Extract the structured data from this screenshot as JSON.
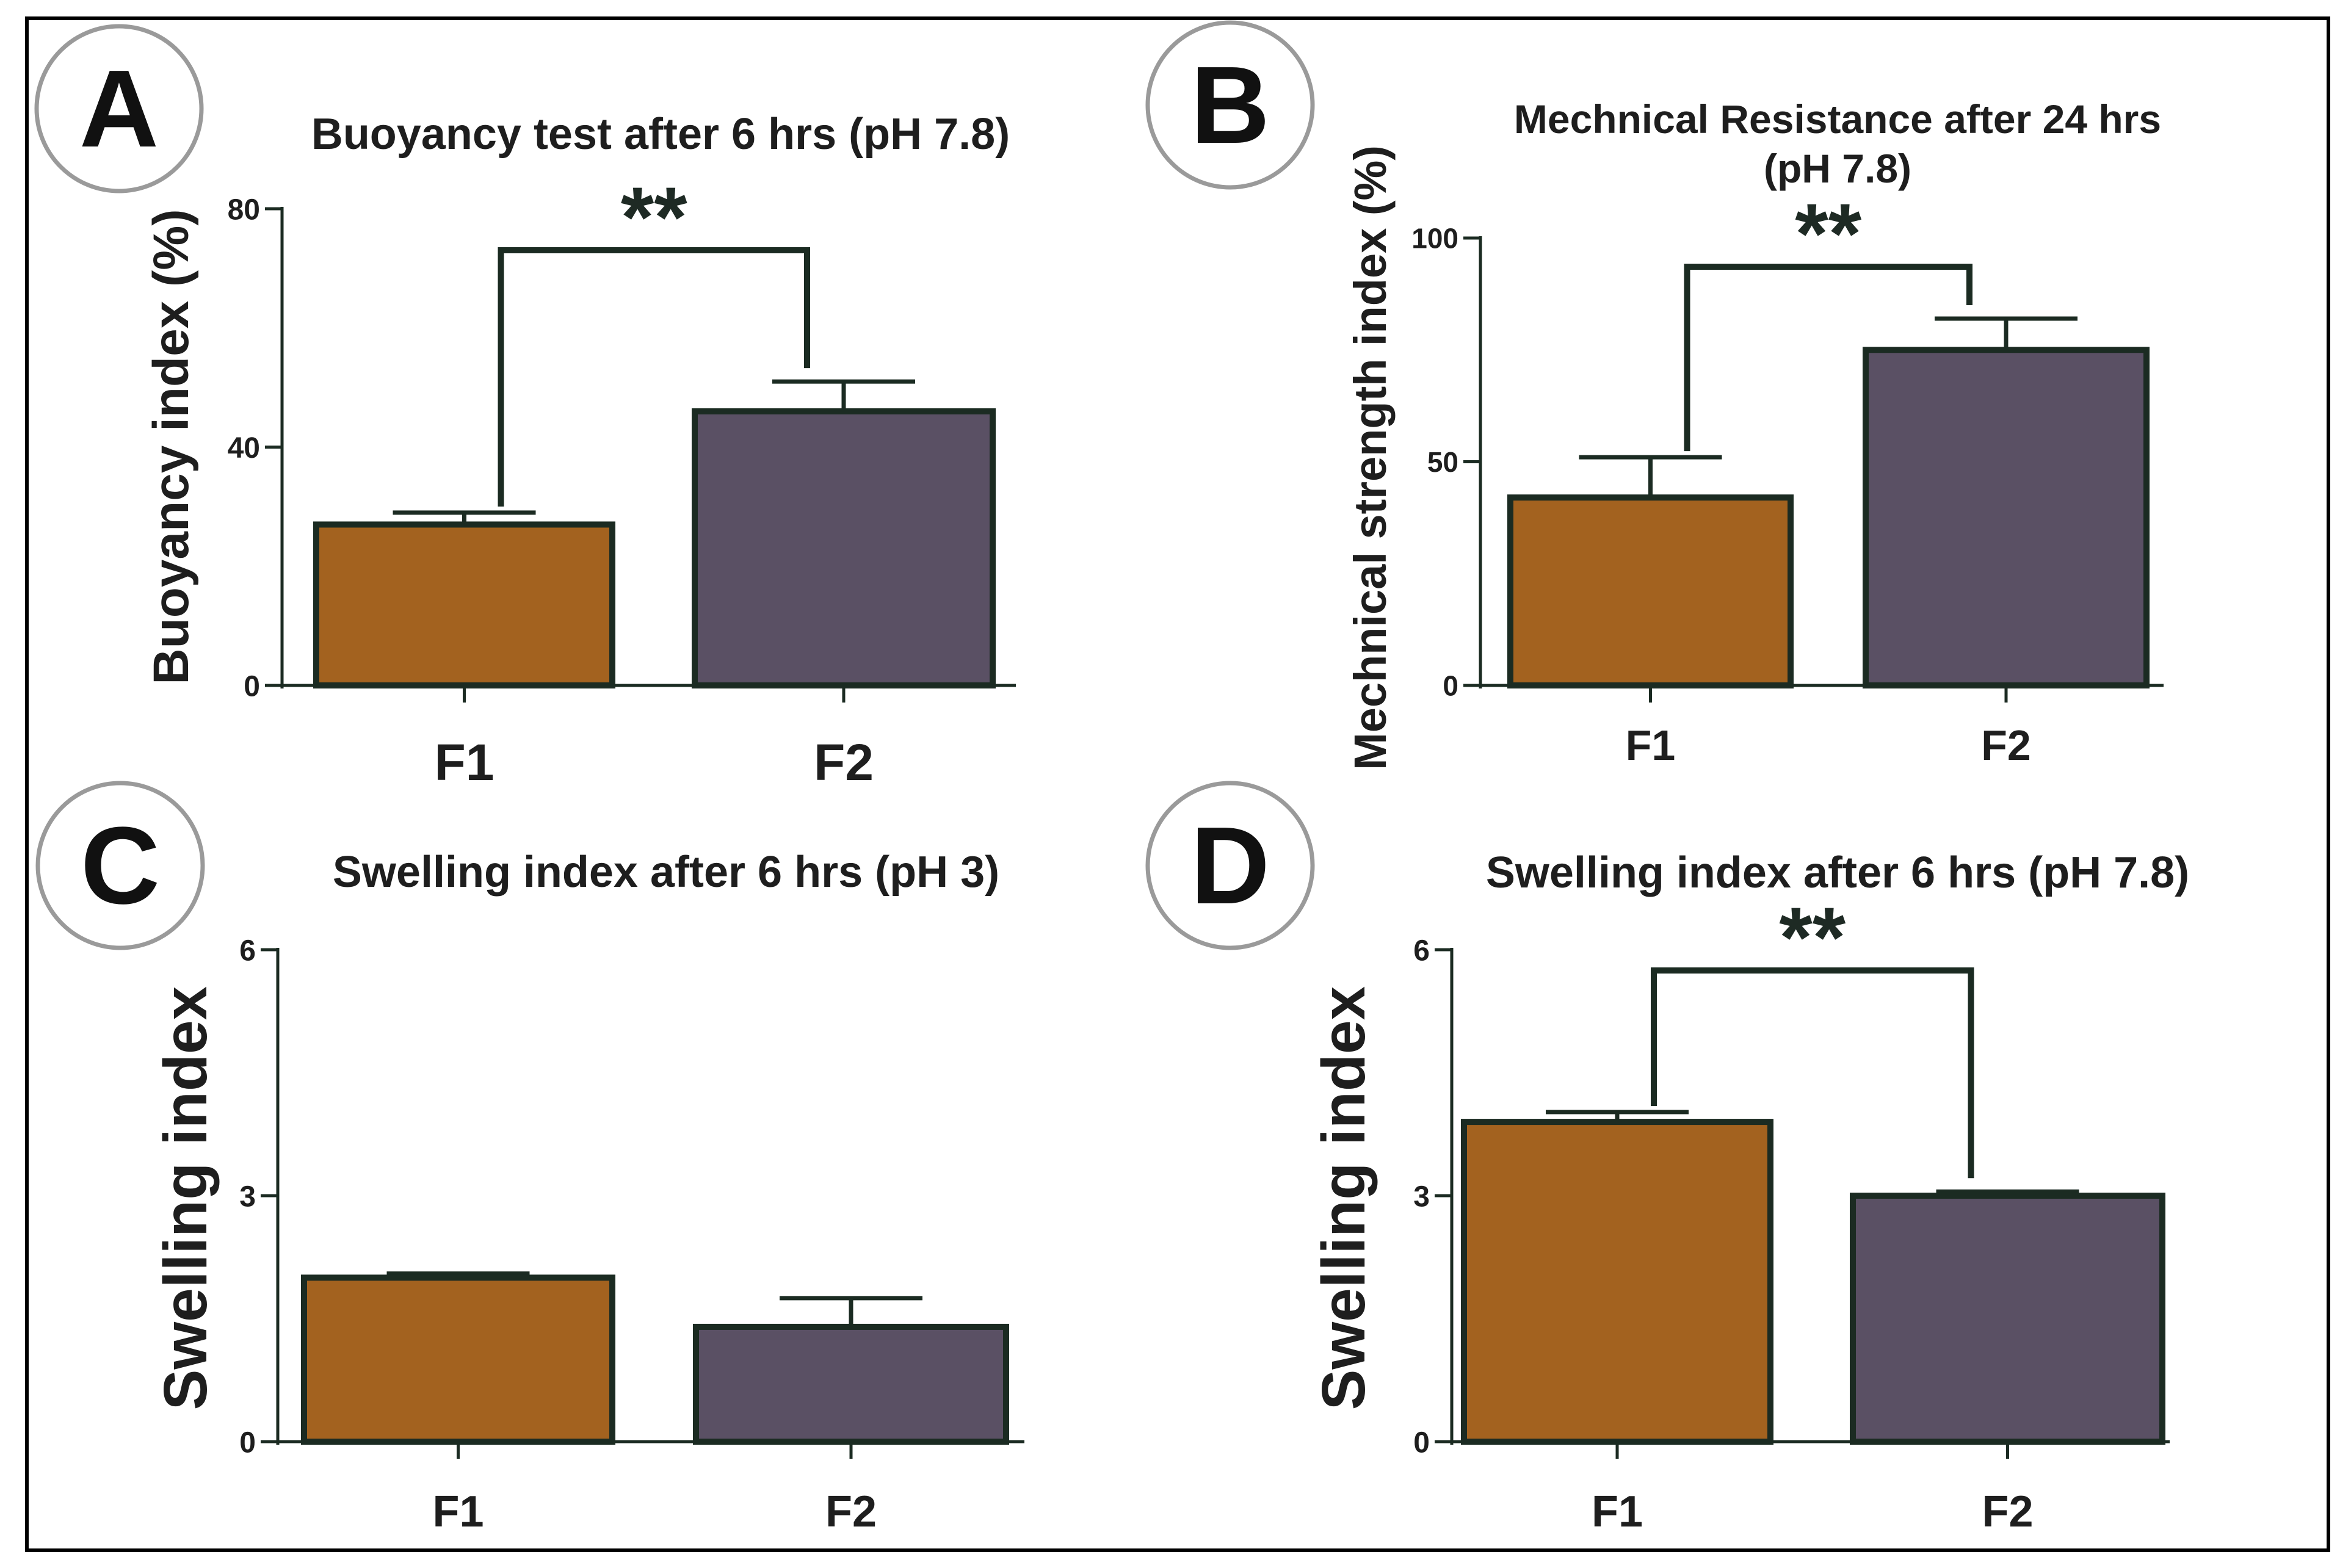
{
  "colors": {
    "F1": "#A3621F",
    "F2": "#5A5064",
    "outline": "#1B2B22",
    "text": "#1e1e1e",
    "frame": "#000000",
    "badge_ring": "#9a9a9a"
  },
  "chart_data": [
    {
      "panel": "A",
      "type": "bar",
      "title": [
        "Buoyancy test after 6 hrs  (pH 7.8)"
      ],
      "ylabel": "Buoyancy index (%)",
      "xlabel": "",
      "categories": [
        "F1",
        "F2"
      ],
      "values": [
        27,
        46
      ],
      "errors": [
        2,
        5
      ],
      "ylim": [
        0,
        80
      ],
      "yticks": [
        0,
        40,
        80
      ],
      "significance": {
        "label": "**",
        "left": 0,
        "right": 1
      }
    },
    {
      "panel": "B",
      "type": "bar",
      "title": [
        "Mechnical Resistance after 24 hrs",
        "(pH 7.8)"
      ],
      "ylabel": "Mechnical strength index (%)",
      "xlabel": "",
      "categories": [
        "F1",
        "F2"
      ],
      "values": [
        42,
        75
      ],
      "errors": [
        9,
        7
      ],
      "ylim": [
        0,
        100
      ],
      "yticks": [
        0,
        50,
        100
      ],
      "significance": {
        "label": "**",
        "left": 0,
        "right": 1
      }
    },
    {
      "panel": "C",
      "type": "bar",
      "title": [
        "Swelling index after 6  hrs (pH 3)"
      ],
      "ylabel": "Swelling index",
      "xlabel": "",
      "categories": [
        "F1",
        "F2"
      ],
      "values": [
        2.0,
        1.4
      ],
      "errors": [
        0.05,
        0.35
      ],
      "ylim": [
        0,
        6
      ],
      "yticks": [
        0,
        3,
        6
      ],
      "significance": null
    },
    {
      "panel": "D",
      "type": "bar",
      "title": [
        "Swelling index after 6  hrs (pH 7.8)"
      ],
      "ylabel": "Swelling index",
      "xlabel": "",
      "categories": [
        "F1",
        "F2"
      ],
      "values": [
        3.9,
        3.0
      ],
      "errors": [
        0.12,
        0.05
      ],
      "ylim": [
        0,
        6
      ],
      "yticks": [
        0,
        3,
        6
      ],
      "significance": {
        "label": "**",
        "left": 0,
        "right": 1
      }
    }
  ]
}
